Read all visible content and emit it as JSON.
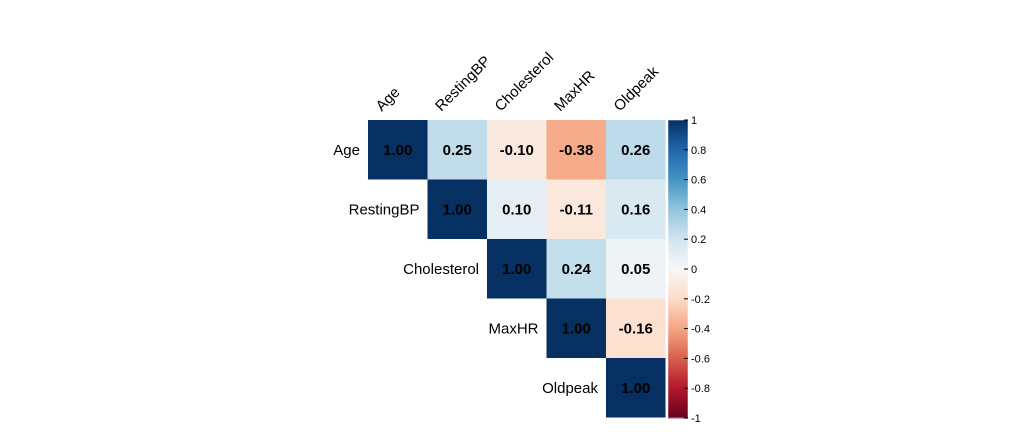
{
  "chart_data": {
    "type": "heatmap",
    "variables": [
      "Age",
      "RestingBP",
      "Cholesterol",
      "MaxHR",
      "Oldpeak"
    ],
    "matrix": [
      [
        1.0,
        0.25,
        -0.1,
        -0.38,
        0.26
      ],
      [
        0.25,
        1.0,
        0.1,
        -0.11,
        0.16
      ],
      [
        -0.1,
        0.1,
        1.0,
        0.24,
        0.05
      ],
      [
        -0.38,
        -0.11,
        0.24,
        1.0,
        -0.16
      ],
      [
        0.26,
        0.16,
        0.05,
        -0.16,
        1.0
      ]
    ],
    "cell_labels": [
      [
        "1.00",
        "0.25",
        "-0.10",
        "-0.38",
        "0.26"
      ],
      [
        "",
        "1.00",
        "0.10",
        "-0.11",
        "0.16"
      ],
      [
        "",
        "",
        "1.00",
        "0.24",
        "0.05"
      ],
      [
        "",
        "",
        "",
        "1.00",
        "-0.16"
      ],
      [
        "",
        "",
        "",
        "",
        "1.00"
      ]
    ],
    "display": "upper-triangle",
    "color_range": [
      -1,
      1
    ],
    "colorbar_ticks": [
      "1",
      "0.8",
      "0.6",
      "0.4",
      "0.2",
      "0",
      "-0.2",
      "-0.4",
      "-0.6",
      "-0.8",
      "-1"
    ],
    "colorbar_tick_values": [
      1,
      0.8,
      0.6,
      0.4,
      0.2,
      0,
      -0.2,
      -0.4,
      -0.6,
      -0.8,
      -1
    ],
    "colors": {
      "negative_max": "#67001F",
      "negative_mid": "#D6604D",
      "neutral": "#F7F7F7",
      "positive_mid": "#4393C3",
      "positive_max": "#053061",
      "text": "#000000"
    },
    "legend": "right"
  }
}
